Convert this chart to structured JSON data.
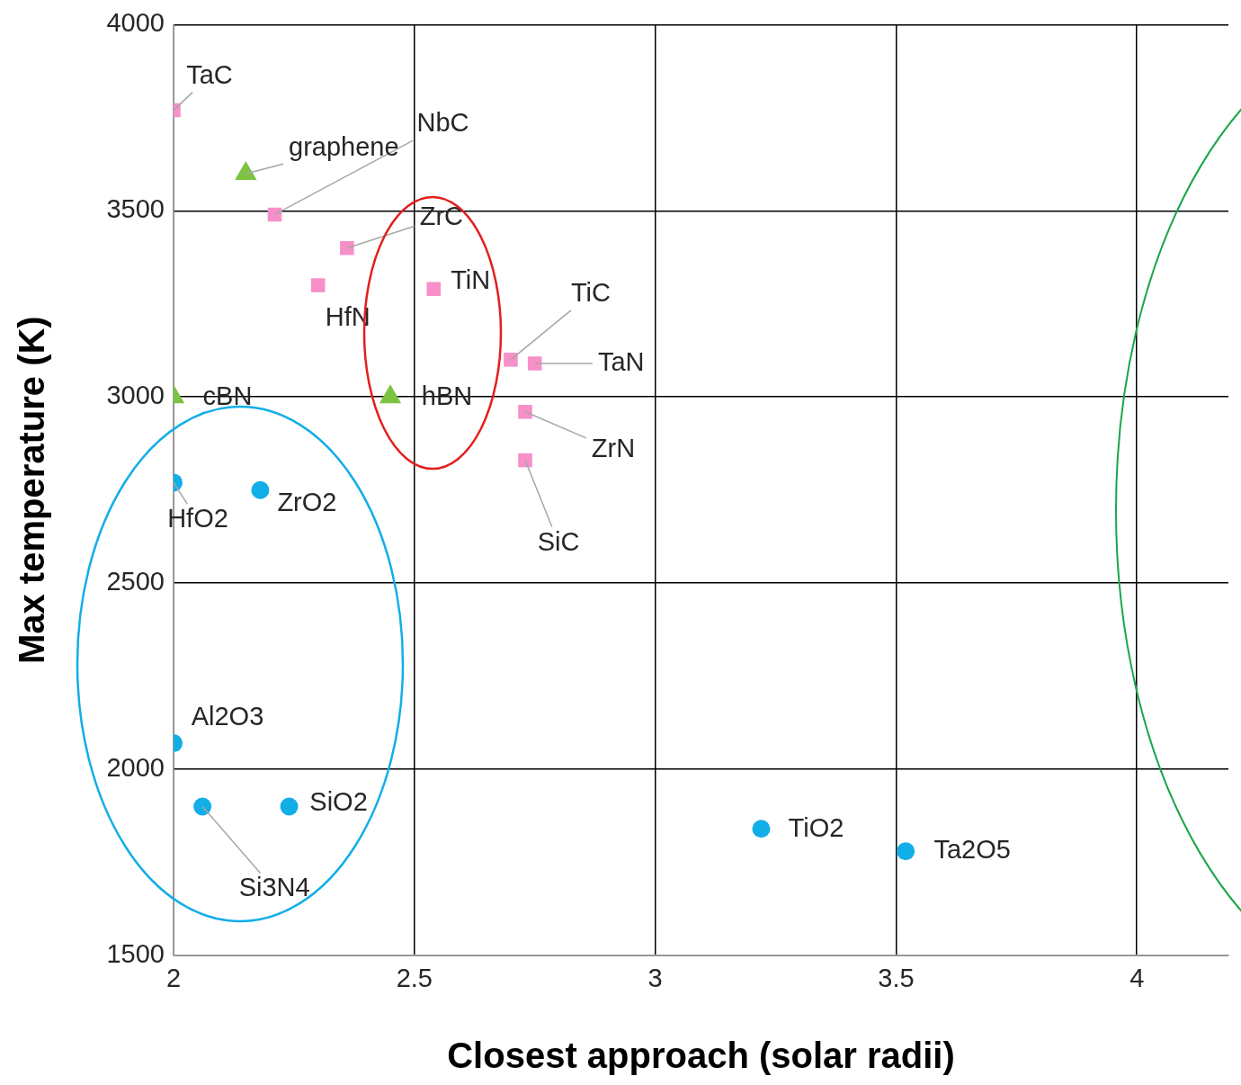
{
  "chart_data": {
    "type": "scatter",
    "xlabel": "Closest approach (solar radii)",
    "ylabel": "Max temperature (K)",
    "xlim": [
      2,
      4.19
    ],
    "ylim": [
      1500,
      4000
    ],
    "xticks": [
      2,
      2.5,
      3,
      3.5,
      4
    ],
    "yticks": [
      1500,
      2000,
      2500,
      3000,
      3500,
      4000
    ],
    "grid": true,
    "legend": false,
    "series": [
      {
        "color": "#f78fc9",
        "marker": "square",
        "x": [
          2.0,
          2.21,
          2.36,
          2.3,
          2.54,
          2.7,
          2.75,
          2.73,
          2.73
        ],
        "values": [
          3770,
          3490,
          3400,
          3300,
          3290,
          3100,
          3090,
          2960,
          2830
        ]
      },
      {
        "color": "#7dc242",
        "marker": "triangle",
        "x": [
          2.15,
          2.0,
          2.45
        ],
        "values": [
          3600,
          3000,
          3000
        ]
      },
      {
        "color": "#12aee8",
        "marker": "circle",
        "x": [
          2.0,
          2.18,
          2.0,
          2.24,
          2.06,
          3.22,
          3.52
        ],
        "values": [
          2770,
          2750,
          2070,
          1900,
          1900,
          1840,
          1780
        ]
      }
    ],
    "annotations": [
      {
        "text": "TaC",
        "x": 2.0,
        "y": 3770
      },
      {
        "text": "NbC",
        "x": 2.21,
        "y": 3490
      },
      {
        "text": "ZrC",
        "x": 2.36,
        "y": 3400
      },
      {
        "text": "HfN",
        "x": 2.3,
        "y": 3300
      },
      {
        "text": "TiN",
        "x": 2.54,
        "y": 3290
      },
      {
        "text": "TiC",
        "x": 2.7,
        "y": 3100
      },
      {
        "text": "TaN",
        "x": 2.75,
        "y": 3090
      },
      {
        "text": "ZrN",
        "x": 2.73,
        "y": 2960
      },
      {
        "text": "SiC",
        "x": 2.73,
        "y": 2830
      },
      {
        "text": "graphene",
        "x": 2.15,
        "y": 3600
      },
      {
        "text": "cBN",
        "x": 2.0,
        "y": 3000
      },
      {
        "text": "hBN",
        "x": 2.45,
        "y": 3000
      },
      {
        "text": "HfO2",
        "x": 2.0,
        "y": 2770
      },
      {
        "text": "ZrO2",
        "x": 2.18,
        "y": 2750
      },
      {
        "text": "Al2O3",
        "x": 2.0,
        "y": 2070
      },
      {
        "text": "SiO2",
        "x": 2.24,
        "y": 1900
      },
      {
        "text": "Si3N4",
        "x": 2.06,
        "y": 1900
      },
      {
        "text": "TiO2",
        "x": 3.22,
        "y": 1840
      },
      {
        "text": "Ta2O5",
        "x": 3.52,
        "y": 1780
      }
    ]
  }
}
